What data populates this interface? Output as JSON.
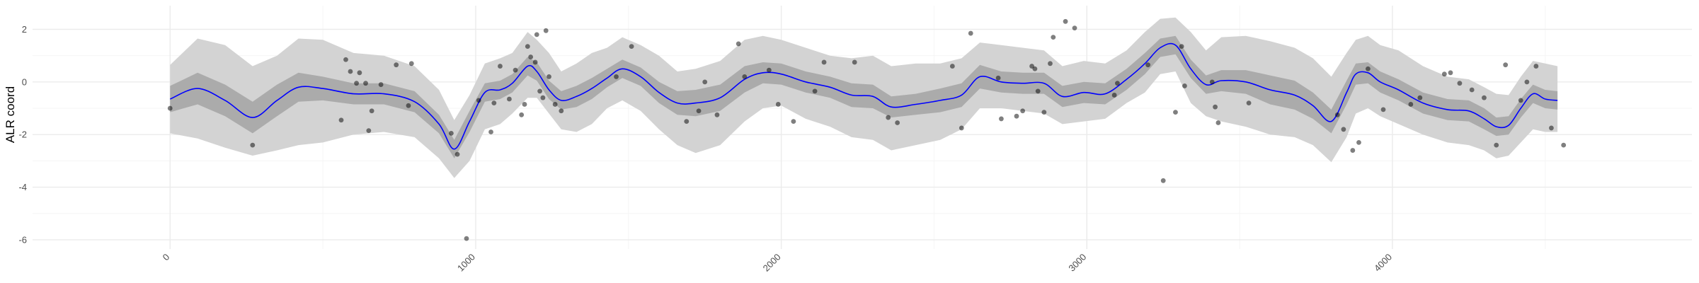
{
  "chart_data": {
    "type": "line",
    "title": "",
    "xlabel": "",
    "ylabel": "ALR coord",
    "xlim": [
      -450,
      4980
    ],
    "ylim": [
      -6.35,
      2.9
    ],
    "x_ticks": [
      0,
      1000,
      2000,
      3000,
      4000
    ],
    "x_tick_labels": [
      "0",
      "1000",
      "2000",
      "3000",
      "4000"
    ],
    "y_ticks": [
      -6,
      -4,
      -2,
      0,
      2
    ],
    "y_tick_labels": [
      "-6",
      "-4",
      "-2",
      "0",
      "2"
    ],
    "grid": true,
    "legend": "none",
    "colors": {
      "mean_line": "#0000ff",
      "inner_band": "#ababab",
      "outer_band": "#d3d3d3",
      "points": "#000000",
      "grid_major": "#ebebeb",
      "grid_minor": "#f5f5f5"
    },
    "series": [
      {
        "kind": "mean",
        "x": [
          0,
          90,
          180,
          270,
          350,
          420,
          500,
          600,
          700,
          800,
          880,
          930,
          980,
          1030,
          1080,
          1120,
          1170,
          1200,
          1240,
          1280,
          1330,
          1380,
          1430,
          1480,
          1540,
          1600,
          1660,
          1720,
          1800,
          1880,
          1940,
          2000,
          2080,
          2160,
          2230,
          2300,
          2360,
          2440,
          2520,
          2590,
          2650,
          2720,
          2790,
          2860,
          2920,
          2990,
          3060,
          3130,
          3190,
          3240,
          3290,
          3340,
          3390,
          3440,
          3520,
          3600,
          3680,
          3740,
          3800,
          3850,
          3880,
          3920,
          3960,
          4020,
          4100,
          4180,
          4250,
          4300,
          4340,
          4380,
          4420,
          4460,
          4500,
          4540
        ],
        "y": [
          -0.65,
          -0.25,
          -0.7,
          -1.35,
          -0.7,
          -0.2,
          -0.25,
          -0.45,
          -0.45,
          -0.75,
          -1.6,
          -2.55,
          -1.5,
          -0.4,
          -0.3,
          -0.05,
          0.6,
          0.4,
          -0.3,
          -0.7,
          -0.55,
          -0.25,
          0.15,
          0.5,
          0.2,
          -0.4,
          -0.8,
          -0.8,
          -0.6,
          0.1,
          0.35,
          0.3,
          0.0,
          -0.2,
          -0.5,
          -0.55,
          -0.95,
          -0.85,
          -0.7,
          -0.5,
          0.2,
          0.0,
          -0.05,
          -0.05,
          -0.55,
          -0.4,
          -0.45,
          0.1,
          0.7,
          1.3,
          1.4,
          0.5,
          -0.1,
          0.05,
          0.0,
          -0.3,
          -0.5,
          -0.9,
          -1.5,
          -0.4,
          0.3,
          0.35,
          0.0,
          -0.3,
          -0.8,
          -1.05,
          -1.1,
          -1.4,
          -1.7,
          -1.65,
          -1.0,
          -0.45,
          -0.65,
          -0.7
        ]
      },
      {
        "kind": "inner_band",
        "x": [
          0,
          90,
          180,
          270,
          350,
          420,
          500,
          600,
          700,
          800,
          880,
          930,
          980,
          1030,
          1080,
          1120,
          1170,
          1200,
          1240,
          1280,
          1330,
          1380,
          1430,
          1480,
          1540,
          1600,
          1660,
          1720,
          1800,
          1880,
          1940,
          2000,
          2080,
          2160,
          2230,
          2300,
          2360,
          2440,
          2520,
          2590,
          2650,
          2720,
          2790,
          2860,
          2920,
          2990,
          3060,
          3130,
          3190,
          3240,
          3290,
          3340,
          3390,
          3440,
          3520,
          3600,
          3680,
          3740,
          3800,
          3850,
          3880,
          3920,
          3960,
          4020,
          4100,
          4180,
          4250,
          4300,
          4340,
          4380,
          4420,
          4460,
          4500,
          4540
        ],
        "lower": [
          -1.15,
          -0.85,
          -1.3,
          -1.95,
          -1.3,
          -0.75,
          -0.7,
          -0.85,
          -0.85,
          -1.15,
          -1.95,
          -2.9,
          -1.9,
          -0.75,
          -0.65,
          -0.4,
          0.25,
          0.05,
          -0.65,
          -1.05,
          -0.95,
          -0.65,
          -0.2,
          0.15,
          -0.15,
          -0.8,
          -1.25,
          -1.3,
          -1.1,
          -0.4,
          -0.05,
          -0.1,
          -0.4,
          -0.6,
          -0.95,
          -1.0,
          -1.35,
          -1.25,
          -1.15,
          -0.95,
          -0.25,
          -0.4,
          -0.45,
          -0.45,
          -0.95,
          -0.8,
          -0.85,
          -0.3,
          0.3,
          0.95,
          1.05,
          0.15,
          -0.45,
          -0.35,
          -0.45,
          -0.85,
          -1.05,
          -1.4,
          -1.95,
          -0.85,
          -0.1,
          -0.05,
          -0.4,
          -0.7,
          -1.2,
          -1.45,
          -1.5,
          -1.8,
          -2.05,
          -2.0,
          -1.35,
          -0.8,
          -1.0,
          -1.05
        ],
        "upper": [
          -0.15,
          0.35,
          -0.1,
          -0.75,
          -0.1,
          0.35,
          0.2,
          -0.05,
          -0.05,
          -0.35,
          -1.25,
          -2.2,
          -1.1,
          -0.05,
          0.05,
          0.3,
          0.95,
          0.75,
          0.05,
          -0.35,
          -0.15,
          0.15,
          0.5,
          0.85,
          0.55,
          0.0,
          -0.35,
          -0.3,
          -0.1,
          0.6,
          0.75,
          0.7,
          0.4,
          0.2,
          -0.05,
          -0.1,
          -0.55,
          -0.45,
          -0.25,
          -0.05,
          0.65,
          0.4,
          0.35,
          0.35,
          -0.15,
          0.0,
          -0.05,
          0.5,
          1.1,
          1.65,
          1.75,
          0.85,
          0.25,
          0.45,
          0.45,
          0.25,
          0.05,
          -0.4,
          -1.05,
          0.05,
          0.7,
          0.75,
          0.4,
          0.1,
          -0.4,
          -0.65,
          -0.7,
          -1.0,
          -1.35,
          -1.3,
          -0.65,
          -0.1,
          -0.3,
          -0.35
        ]
      },
      {
        "kind": "outer_band",
        "x": [
          0,
          90,
          180,
          270,
          350,
          420,
          500,
          600,
          700,
          800,
          880,
          930,
          980,
          1030,
          1080,
          1120,
          1170,
          1200,
          1240,
          1280,
          1330,
          1380,
          1430,
          1480,
          1540,
          1600,
          1660,
          1720,
          1800,
          1880,
          1940,
          2000,
          2080,
          2160,
          2230,
          2300,
          2360,
          2440,
          2520,
          2590,
          2650,
          2720,
          2790,
          2860,
          2920,
          2990,
          3060,
          3130,
          3190,
          3240,
          3290,
          3340,
          3390,
          3440,
          3520,
          3600,
          3680,
          3740,
          3800,
          3850,
          3880,
          3920,
          3960,
          4020,
          4100,
          4180,
          4250,
          4300,
          4340,
          4380,
          4420,
          4460,
          4500,
          4540
        ],
        "lower": [
          -1.95,
          -2.15,
          -2.5,
          -2.8,
          -2.6,
          -2.4,
          -2.3,
          -2.0,
          -1.9,
          -2.1,
          -2.9,
          -3.65,
          -3.0,
          -1.8,
          -1.6,
          -1.2,
          -0.6,
          -0.6,
          -1.2,
          -1.8,
          -1.9,
          -1.6,
          -1.0,
          -0.7,
          -1.1,
          -1.8,
          -2.4,
          -2.7,
          -2.4,
          -1.5,
          -1.0,
          -0.9,
          -1.4,
          -1.7,
          -2.1,
          -2.2,
          -2.6,
          -2.4,
          -2.2,
          -1.8,
          -1.0,
          -1.0,
          -1.1,
          -1.2,
          -1.6,
          -1.5,
          -1.4,
          -0.8,
          -0.4,
          0.3,
          0.4,
          -0.8,
          -1.3,
          -1.5,
          -1.7,
          -2.0,
          -2.1,
          -2.4,
          -3.05,
          -2.1,
          -1.2,
          -1.0,
          -1.3,
          -1.6,
          -2.0,
          -2.3,
          -2.4,
          -2.6,
          -2.9,
          -2.8,
          -2.3,
          -1.8,
          -1.9,
          -1.9
        ],
        "upper": [
          0.65,
          1.65,
          1.4,
          0.6,
          1.0,
          1.65,
          1.6,
          1.1,
          1.0,
          0.6,
          -0.3,
          -1.45,
          -0.5,
          0.7,
          0.9,
          1.1,
          1.9,
          1.6,
          1.1,
          0.4,
          0.7,
          1.1,
          1.3,
          1.7,
          1.4,
          1.0,
          0.4,
          0.5,
          0.8,
          1.6,
          1.75,
          1.6,
          1.3,
          1.0,
          0.9,
          1.0,
          0.6,
          0.7,
          0.7,
          0.9,
          1.5,
          1.4,
          1.3,
          1.2,
          0.6,
          0.8,
          0.7,
          1.2,
          1.9,
          2.4,
          2.45,
          1.9,
          1.2,
          1.7,
          1.75,
          1.55,
          1.3,
          0.9,
          0.2,
          1.1,
          1.6,
          1.75,
          1.4,
          1.2,
          0.6,
          0.2,
          0.1,
          -0.2,
          -0.45,
          -0.5,
          0.2,
          0.8,
          0.7,
          0.6
        ]
      }
    ],
    "points": {
      "x": [
        0,
        270,
        560,
        575,
        590,
        610,
        620,
        640,
        650,
        660,
        690,
        740,
        780,
        790,
        920,
        940,
        970,
        1010,
        1050,
        1060,
        1080,
        1110,
        1130,
        1150,
        1160,
        1170,
        1180,
        1195,
        1200,
        1210,
        1220,
        1230,
        1240,
        1260,
        1280,
        1460,
        1510,
        1690,
        1730,
        1750,
        1790,
        1860,
        1880,
        1960,
        1990,
        2040,
        2110,
        2140,
        2240,
        2350,
        2380,
        2560,
        2590,
        2620,
        2710,
        2720,
        2770,
        2790,
        2820,
        2830,
        2840,
        2860,
        2880,
        2890,
        2930,
        2960,
        3090,
        3100,
        3200,
        3250,
        3290,
        3310,
        3320,
        3410,
        3420,
        3430,
        3530,
        3820,
        3840,
        3870,
        3890,
        3920,
        3970,
        4060,
        4090,
        4170,
        4190,
        4220,
        4260,
        4300,
        4340,
        4370,
        4420,
        4440,
        4470,
        4520,
        4560
      ],
      "y": [
        -1.0,
        -2.4,
        -1.45,
        0.85,
        0.4,
        -0.05,
        0.35,
        -0.05,
        -1.85,
        -1.1,
        -0.1,
        0.65,
        -0.9,
        0.7,
        -1.95,
        -2.75,
        -5.95,
        -0.7,
        -1.9,
        -0.8,
        0.6,
        -0.65,
        0.45,
        -1.25,
        -0.85,
        1.35,
        0.95,
        0.75,
        1.8,
        -0.35,
        -0.6,
        1.95,
        0.2,
        -0.85,
        -1.1,
        0.2,
        1.35,
        -1.5,
        -1.1,
        0.0,
        -1.25,
        1.45,
        0.2,
        0.45,
        -0.85,
        -1.5,
        -0.35,
        0.75,
        0.75,
        -1.35,
        -1.55,
        0.6,
        -1.75,
        1.85,
        0.15,
        -1.4,
        -1.3,
        -1.1,
        0.6,
        0.5,
        -0.35,
        -1.15,
        0.7,
        1.7,
        2.3,
        2.05,
        -0.5,
        -0.05,
        0.65,
        -3.75,
        -1.15,
        1.35,
        -0.15,
        0.0,
        -0.95,
        -1.55,
        -0.8,
        -1.25,
        -1.8,
        -2.6,
        -2.3,
        0.5,
        -1.05,
        -0.85,
        -0.6,
        0.3,
        0.35,
        -0.05,
        -0.3,
        -0.6,
        -2.4,
        0.65,
        -0.7,
        0.0,
        0.6,
        -1.75,
        -2.4
      ]
    }
  }
}
